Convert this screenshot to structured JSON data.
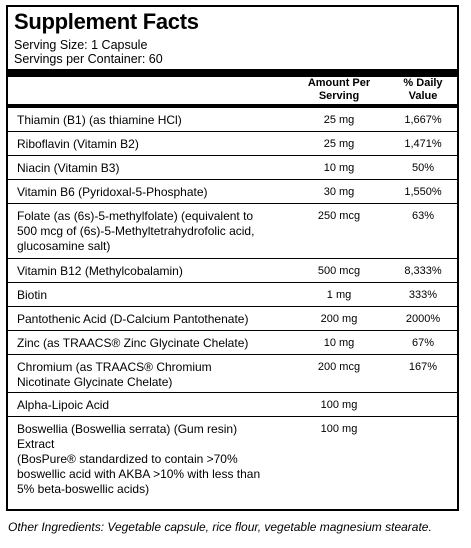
{
  "title": "Supplement Facts",
  "serving_size": "Serving Size: 1 Capsule",
  "servings_per_container": "Servings per Container: 60",
  "columns": {
    "amount_line1": "Amount Per",
    "amount_line2": "Serving",
    "dv_line1": "% Daily",
    "dv_line2": "Value"
  },
  "rows": [
    {
      "name": [
        "Thiamin (B1) (as thiamine HCl)"
      ],
      "amount": "25 mg",
      "dv": "1,667%"
    },
    {
      "name": [
        "Riboflavin (Vitamin B2)"
      ],
      "amount": "25 mg",
      "dv": "1,471%"
    },
    {
      "name": [
        "Niacin (Vitamin B3)"
      ],
      "amount": "10 mg",
      "dv": "50%"
    },
    {
      "name": [
        "Vitamin B6 (Pyridoxal-5-Phosphate)"
      ],
      "amount": "30 mg",
      "dv": "1,550%"
    },
    {
      "name": [
        "Folate (as (6s)-5-methylfolate) (equivalent to",
        "500 mcg of (6s)-5-Methyltetrahydrofolic acid,",
        "glucosamine salt)"
      ],
      "amount": "250 mcg",
      "dv": "63%"
    },
    {
      "name": [
        "Vitamin B12 (Methylcobalamin)"
      ],
      "amount": "500 mcg",
      "dv": "8,333%"
    },
    {
      "name": [
        "Biotin"
      ],
      "amount": "1 mg",
      "dv": "333%"
    },
    {
      "name": [
        "Pantothenic Acid (D-Calcium Pantothenate)"
      ],
      "amount": "200 mg",
      "dv": "2000%"
    },
    {
      "name": [
        "Zinc (as TRAACS® Zinc Glycinate Chelate)"
      ],
      "amount": "10 mg",
      "dv": "67%"
    },
    {
      "name": [
        "Chromium (as TRAACS® Chromium",
        "Nicotinate Glycinate Chelate)"
      ],
      "amount": "200 mcg",
      "dv": "167%"
    },
    {
      "name": [
        "Alpha-Lipoic Acid"
      ],
      "amount": "100 mg",
      "dv": ""
    },
    {
      "name": [
        "Boswellia (Boswellia serrata) (Gum resin)",
        "Extract",
        "(BosPure® standardized to contain >70%",
        "boswellic acid with AKBA >10% with less than",
        "5% beta-boswellic acids)"
      ],
      "amount": "100 mg",
      "dv": ""
    }
  ],
  "other_ingredients": "Other Ingredients: Vegetable capsule, rice flour, vegetable magnesium stearate."
}
